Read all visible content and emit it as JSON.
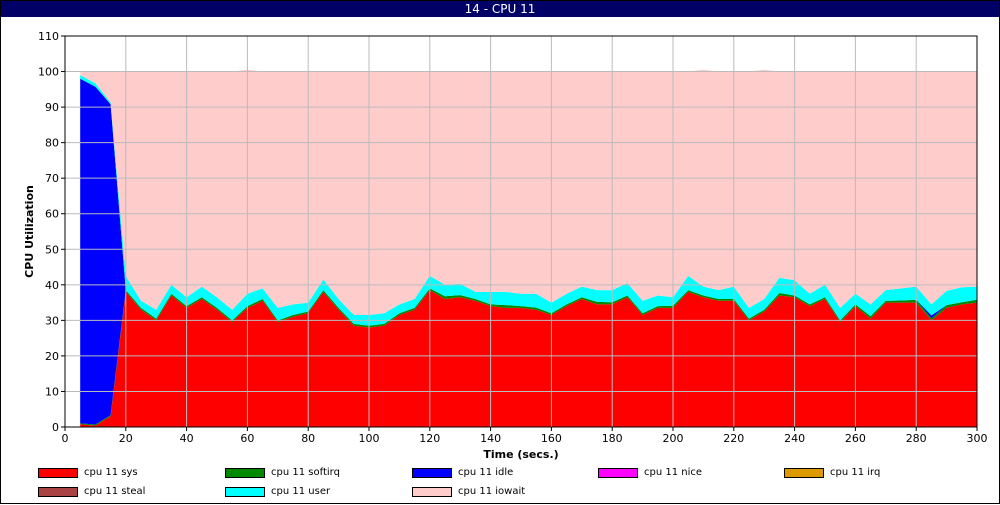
{
  "window": {
    "title": "14 - CPU 11"
  },
  "chart_data": {
    "type": "area",
    "stacked": true,
    "title": "14 - CPU 11",
    "xlabel": "Time (secs.)",
    "ylabel": "CPU Utilization",
    "xlim": [
      0,
      300
    ],
    "ylim": [
      0,
      110
    ],
    "xticks": [
      "0",
      "20",
      "40",
      "60",
      "80",
      "100",
      "120",
      "140",
      "160",
      "180",
      "200",
      "220",
      "240",
      "260",
      "280",
      "300"
    ],
    "yticks": [
      "0",
      "10",
      "20",
      "30",
      "40",
      "50",
      "60",
      "70",
      "80",
      "90",
      "100",
      "110"
    ],
    "grid": true,
    "legend_position": "bottom",
    "x": [
      5,
      10,
      15,
      20,
      25,
      30,
      35,
      40,
      45,
      50,
      55,
      60,
      65,
      70,
      75,
      80,
      85,
      90,
      95,
      100,
      105,
      110,
      115,
      120,
      125,
      130,
      135,
      140,
      145,
      150,
      155,
      160,
      165,
      170,
      175,
      180,
      185,
      190,
      195,
      200,
      205,
      210,
      215,
      220,
      225,
      230,
      235,
      240,
      245,
      250,
      255,
      260,
      265,
      270,
      275,
      280,
      285,
      290,
      295,
      300
    ],
    "series": [
      {
        "name": "cpu 11 sys",
        "color": "#ff0000",
        "values": [
          0.8,
          0.4,
          3,
          38,
          33,
          30,
          37,
          33.5,
          36,
          33,
          29.5,
          33.5,
          35.5,
          29.5,
          31,
          32,
          38,
          33,
          28.5,
          28,
          28.5,
          31.5,
          33,
          38.5,
          36,
          36.5,
          35.5,
          34,
          33.5,
          33.5,
          33,
          31.5,
          34,
          36,
          34.5,
          34.5,
          36.5,
          31.5,
          33.5,
          33.5,
          38,
          36.5,
          35.5,
          35.5,
          30,
          32.5,
          37,
          36.5,
          34,
          36,
          29.5,
          34,
          30.5,
          35,
          35,
          35,
          30,
          33.5,
          34.5,
          35
        ]
      },
      {
        "name": "cpu 11 softirq",
        "color": "#008800",
        "values": [
          0.2,
          0.3,
          0.3,
          0.5,
          0.5,
          0.5,
          0.5,
          0.5,
          0.5,
          0.5,
          0.5,
          0.5,
          0.5,
          0.5,
          0.5,
          0.5,
          0.5,
          0.5,
          0.5,
          0.5,
          0.5,
          0.5,
          0.5,
          0.5,
          0.8,
          0.6,
          0.5,
          0.5,
          0.8,
          0.5,
          0.6,
          0.5,
          0.5,
          0.5,
          0.7,
          0.6,
          0.5,
          0.5,
          0.5,
          0.6,
          0.5,
          0.5,
          0.5,
          0.5,
          0.5,
          0.5,
          0.7,
          0.5,
          0.5,
          0.5,
          0.5,
          0.5,
          0.7,
          0.5,
          0.6,
          0.8,
          0.6,
          0.8,
          0.6,
          0.8
        ]
      },
      {
        "name": "cpu 11 idle",
        "color": "#0000ff",
        "values": [
          97,
          95,
          87.5,
          0,
          0,
          0,
          0,
          0,
          0,
          0,
          0,
          0,
          0,
          0,
          0,
          0,
          0,
          0,
          0,
          0,
          0,
          0,
          0,
          0,
          0,
          0,
          0,
          0,
          0,
          0,
          0,
          0,
          0,
          0,
          0,
          0,
          0,
          0,
          0,
          0,
          0,
          0,
          0,
          0,
          0,
          0,
          0,
          0,
          0,
          0,
          0,
          0,
          0,
          0,
          0,
          0,
          0.8,
          0,
          0,
          0
        ]
      },
      {
        "name": "cpu 11 nice",
        "color": "#ff00ff",
        "values": [
          0,
          0,
          0,
          0,
          0,
          0,
          0,
          0,
          0,
          0,
          0,
          0,
          0,
          0,
          0,
          0,
          0,
          0,
          0,
          0,
          0,
          0,
          0,
          0,
          0,
          0,
          0,
          0,
          0,
          0,
          0,
          0,
          0,
          0,
          0,
          0,
          0,
          0,
          0,
          0,
          0,
          0,
          0,
          0,
          0,
          0,
          0,
          0,
          0,
          0,
          0,
          0,
          0,
          0,
          0,
          0,
          0,
          0,
          0,
          0
        ]
      },
      {
        "name": "cpu 11 irq",
        "color": "#dd9900",
        "values": [
          0,
          0,
          0,
          0,
          0,
          0,
          0,
          0,
          0,
          0,
          0,
          0,
          0,
          0,
          0,
          0,
          0,
          0,
          0,
          0,
          0,
          0,
          0,
          0,
          0,
          0,
          0,
          0,
          0,
          0,
          0,
          0,
          0,
          0,
          0,
          0,
          0,
          0,
          0,
          0,
          0,
          0,
          0,
          0,
          0,
          0,
          0,
          0,
          0,
          0,
          0,
          0,
          0,
          0,
          0,
          0,
          0,
          0,
          0,
          0
        ]
      },
      {
        "name": "cpu 11 steal",
        "color": "#aa4444",
        "values": [
          0,
          0,
          0,
          0,
          0,
          0,
          0,
          0,
          0,
          0,
          0,
          0,
          0,
          0,
          0,
          0,
          0,
          0,
          0,
          0,
          0,
          0,
          0,
          0,
          0,
          0,
          0,
          0,
          0,
          0,
          0,
          0,
          0,
          0,
          0,
          0,
          0,
          0,
          0,
          0,
          0,
          0,
          0,
          0,
          0,
          0,
          0,
          0,
          0,
          0,
          0,
          0,
          0,
          0,
          0,
          0,
          0,
          0,
          0,
          0
        ]
      },
      {
        "name": "cpu 11 user",
        "color": "#00ffff",
        "values": [
          1,
          1,
          0.5,
          4,
          2,
          2.5,
          2.5,
          2.5,
          3,
          3,
          3,
          3.5,
          3,
          3.5,
          3,
          2.5,
          3,
          2.5,
          2.5,
          3,
          3,
          2.5,
          2.5,
          3.5,
          3.2,
          3.2,
          2,
          3.5,
          3.7,
          3.5,
          3.9,
          3,
          3,
          3,
          3.3,
          3.4,
          3.5,
          3.5,
          3,
          2.4,
          4,
          2.5,
          2.5,
          3.5,
          3,
          3,
          4.3,
          4.3,
          3,
          3.5,
          3.5,
          3,
          3.3,
          3,
          3.4,
          3.7,
          3.1,
          4,
          4.2,
          3.7
        ]
      },
      {
        "name": "cpu 11 iowait",
        "color": "#ffcccc",
        "values": [
          1,
          3.3,
          8.7,
          57.5,
          64.5,
          67,
          60,
          63.5,
          60.5,
          63.5,
          67,
          63,
          61,
          66.5,
          65.5,
          65,
          58.5,
          64,
          68.5,
          68.5,
          68,
          65.5,
          64,
          57.5,
          60,
          59.7,
          62,
          62,
          62,
          62.5,
          62.5,
          65,
          62.5,
          60.5,
          61.5,
          61.5,
          59.5,
          64.5,
          63,
          63.5,
          57.5,
          61,
          61.5,
          60.5,
          66.5,
          64.5,
          58,
          58.7,
          62.5,
          60,
          66.5,
          62.5,
          65.5,
          61.5,
          61,
          60.5,
          65.5,
          61.7,
          60.7,
          60.5
        ]
      }
    ]
  }
}
